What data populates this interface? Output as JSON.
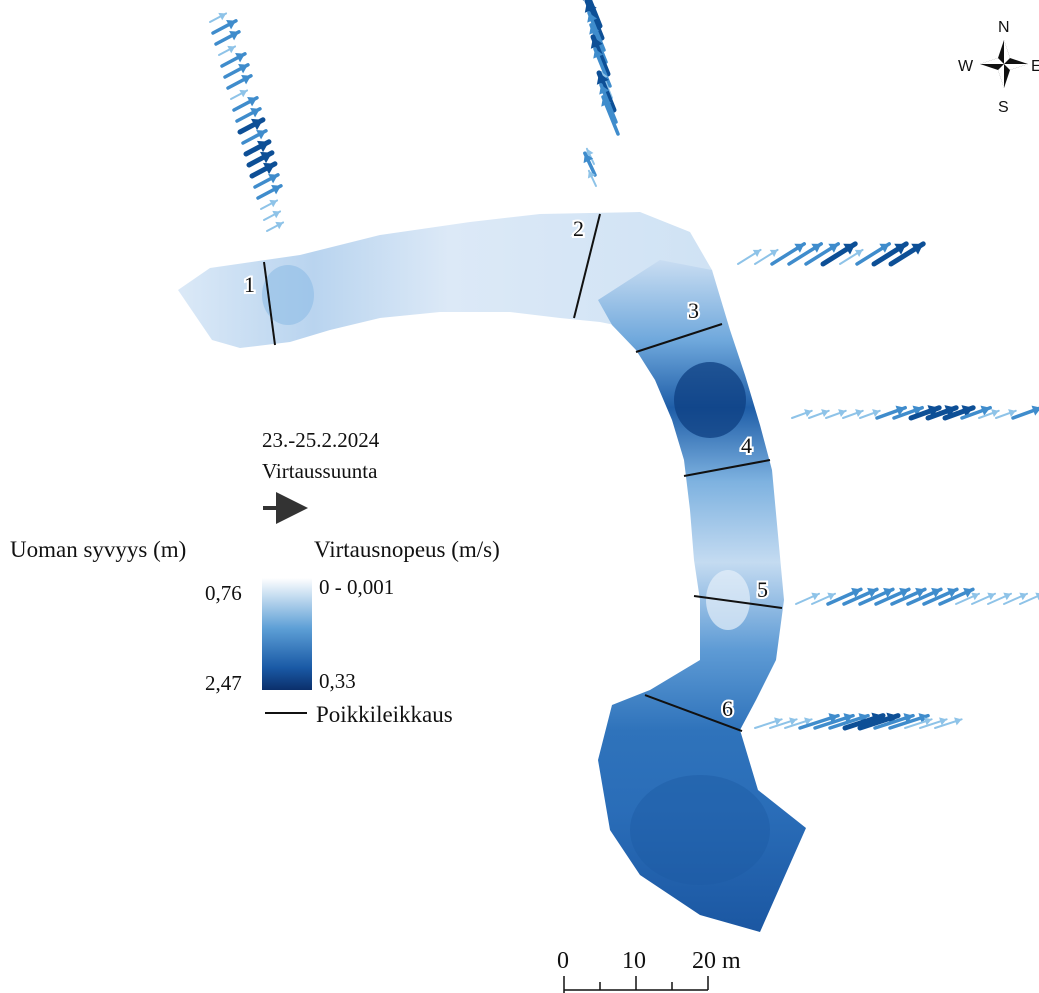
{
  "legend": {
    "date": "23.-25.2.2024",
    "flow_direction_label": "Virtaussuunta",
    "depth_title": "Uoman syvyys (m)",
    "depth_min": "0,76",
    "depth_max": "2,47",
    "velocity_title": "Virtausnopeus (m/s)",
    "velocity_min": "0 - 0,001",
    "velocity_max": "0,33",
    "cross_section_label": "Poikkileikkaus"
  },
  "compass": {
    "north": "N",
    "south": "S",
    "west": "W",
    "east": "E"
  },
  "scale_bar": {
    "ticks": [
      "0",
      "10",
      "20 m"
    ]
  },
  "cross_sections": [
    "1",
    "2",
    "3",
    "4",
    "5",
    "6"
  ],
  "colors": {
    "shallow": "#eef5fc",
    "deep": "#0b3a78",
    "arrow_light": "#8ec3e8",
    "arrow_mid": "#3f8ccc",
    "arrow_dark": "#0d4f96",
    "legend_arrow": "#333333"
  }
}
